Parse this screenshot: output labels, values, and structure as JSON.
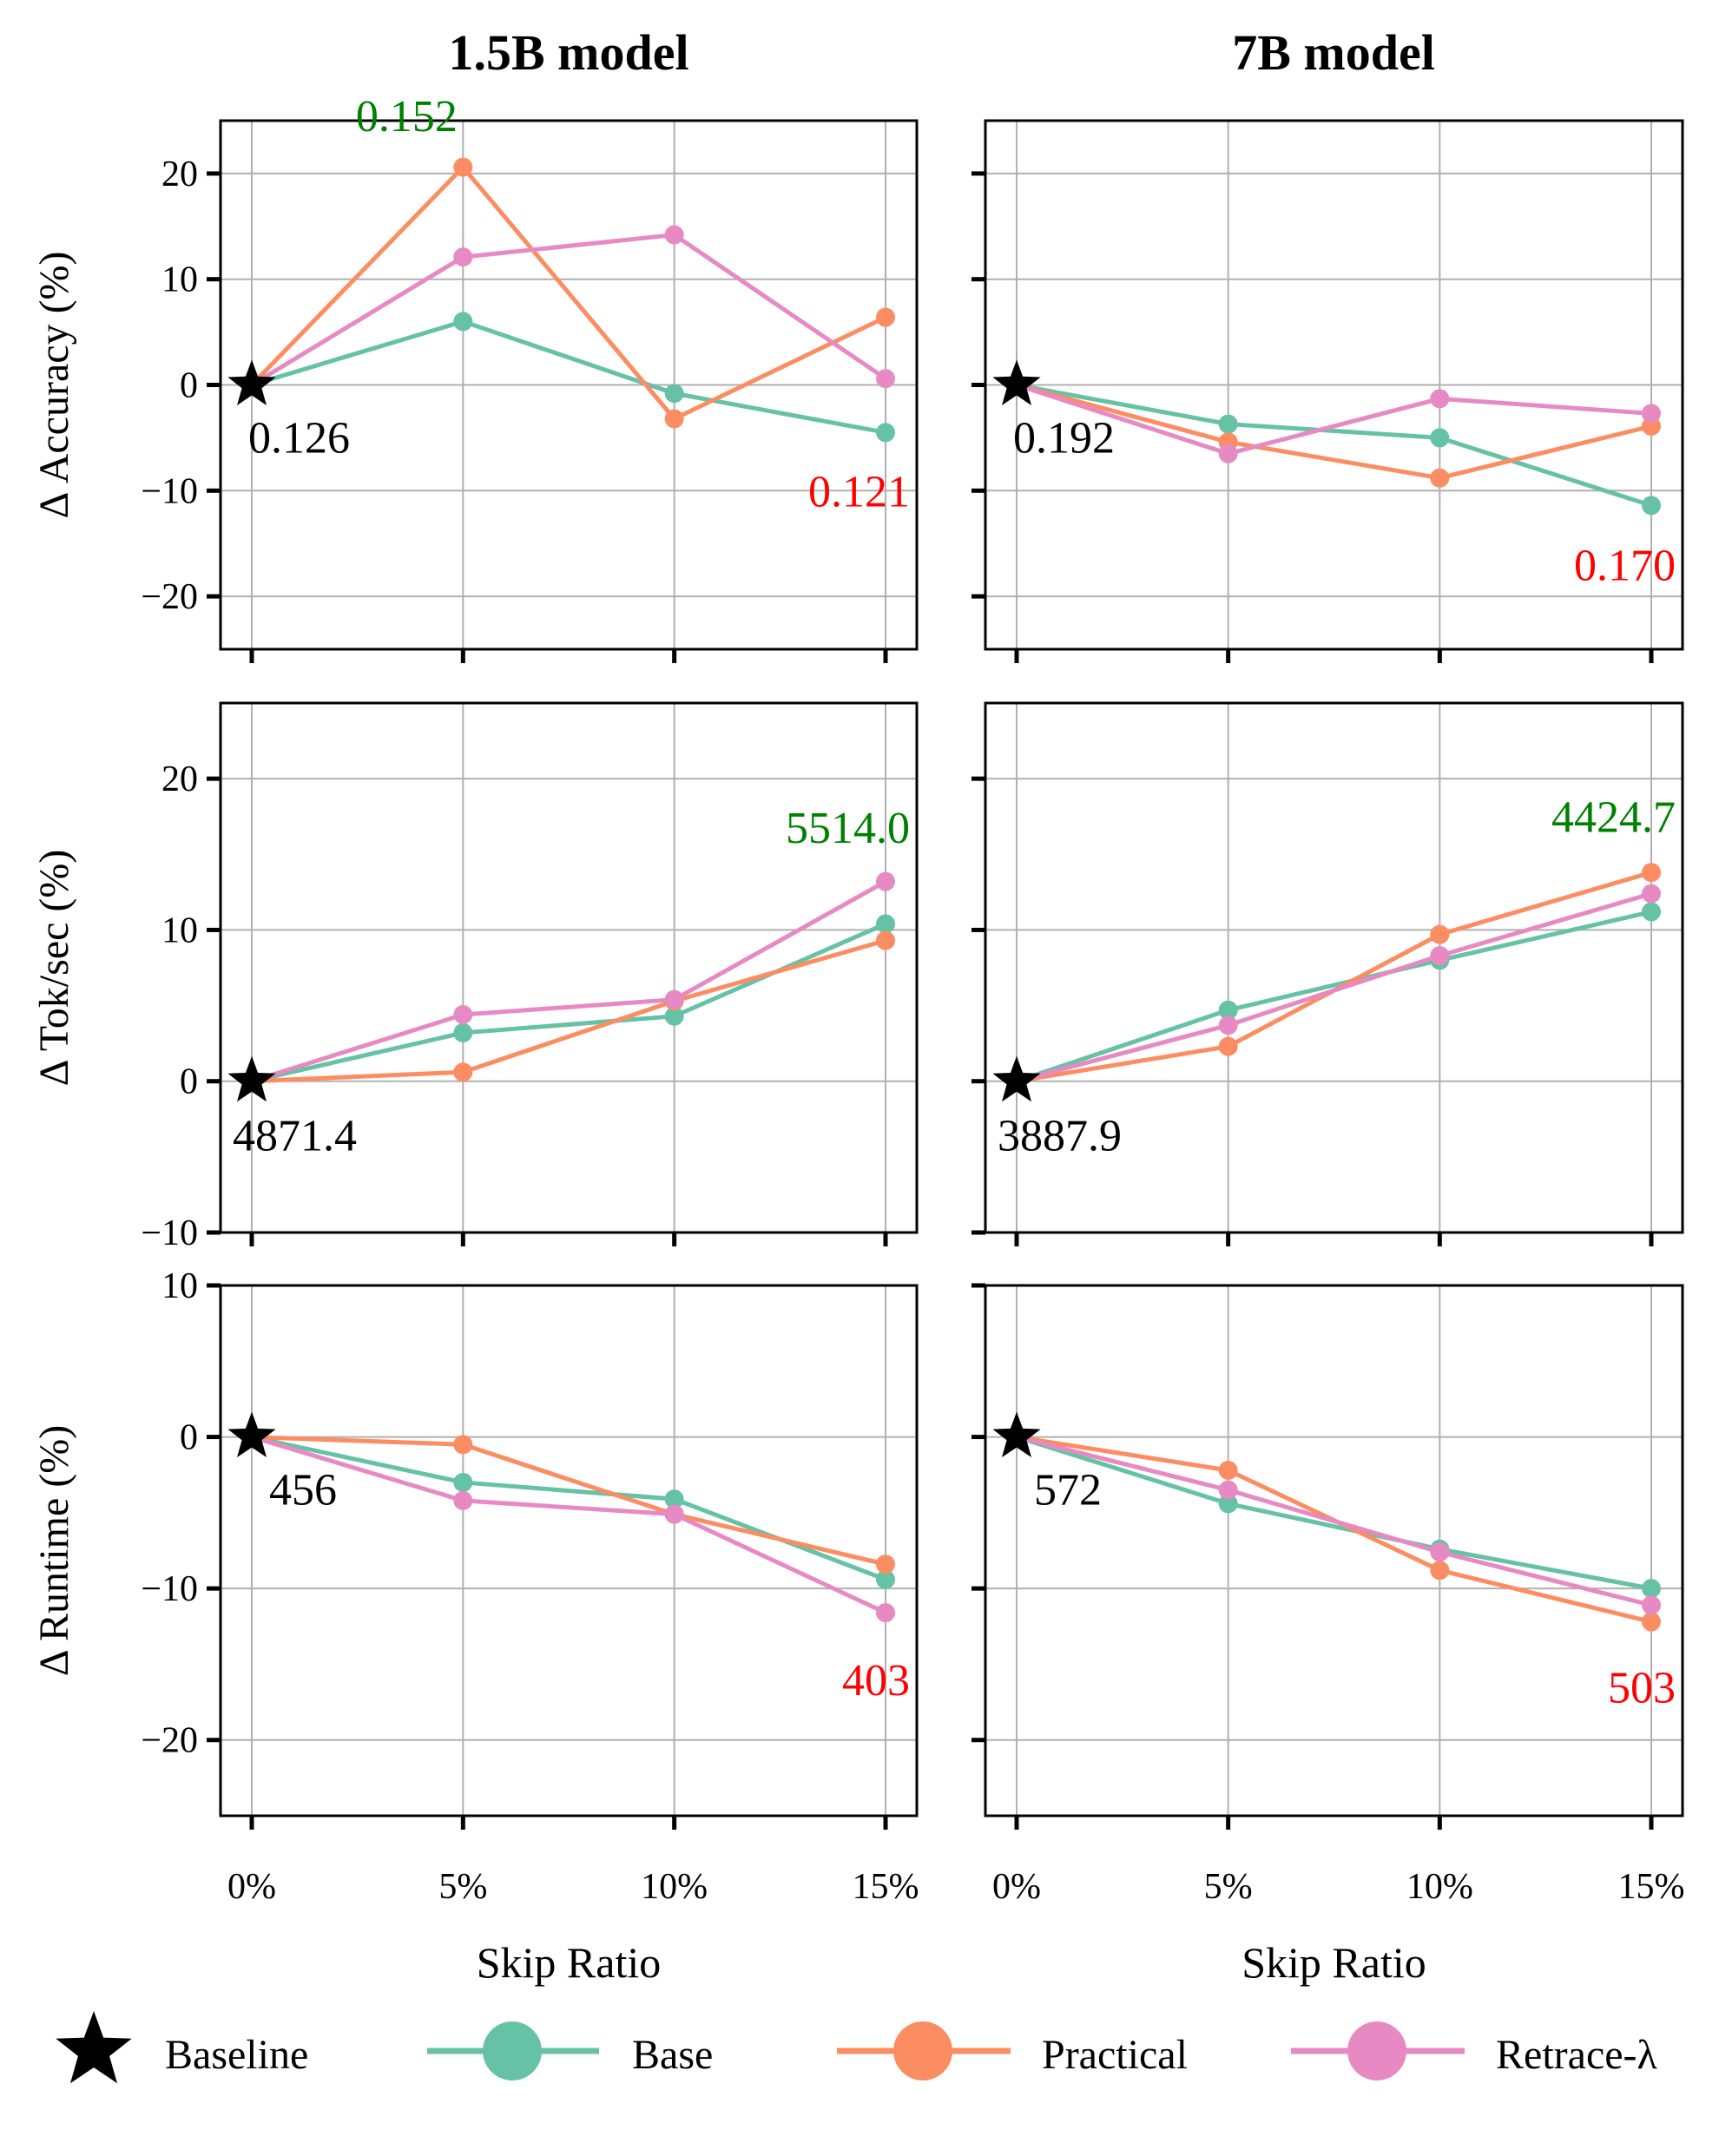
{
  "colors": {
    "base": "#66c2a5",
    "practical": "#fc8d62",
    "retrace": "#e78ac3",
    "green_annot": "#008000",
    "red_annot": "#ff0000",
    "grid": "#b0b0b0"
  },
  "columns": [
    "1.5B model",
    "7B model"
  ],
  "legend": [
    {
      "key": "baseline",
      "label": "Baseline",
      "marker": "star"
    },
    {
      "key": "base",
      "label": "Base",
      "marker": "circle-line"
    },
    {
      "key": "practical",
      "label": "Practical",
      "marker": "circle-line"
    },
    {
      "key": "retrace",
      "label": "Retrace-λ",
      "marker": "circle-line"
    }
  ],
  "chart_data": [
    {
      "type": "line",
      "row": 0,
      "col": 0,
      "title": "1.5B model",
      "ylabel": "Δ Accuracy (%)",
      "xlabel": "",
      "categories": [
        "0%",
        "5%",
        "10%",
        "15%"
      ],
      "ylim": [
        -25,
        25
      ],
      "yticks": [
        -20,
        -10,
        0,
        10,
        20
      ],
      "grid": true,
      "series": [
        {
          "name": "Base",
          "key": "base",
          "values": [
            0,
            6.0,
            -0.8,
            -4.5
          ]
        },
        {
          "name": "Practical",
          "key": "practical",
          "values": [
            0,
            20.6,
            -3.2,
            6.4
          ]
        },
        {
          "name": "Retrace-λ",
          "key": "retrace",
          "values": [
            0,
            12.1,
            14.2,
            0.6
          ]
        }
      ],
      "baseline_value": "0.126",
      "annotations": [
        {
          "text": "0.152",
          "color": "green",
          "x": 1,
          "y": 25.5
        },
        {
          "text": "0.121",
          "color": "red",
          "x": 3,
          "y": -10
        }
      ]
    },
    {
      "type": "line",
      "row": 0,
      "col": 1,
      "title": "7B model",
      "ylabel": "",
      "xlabel": "",
      "categories": [
        "0%",
        "5%",
        "10%",
        "15%"
      ],
      "ylim": [
        -25,
        25
      ],
      "yticks": [
        -20,
        -10,
        0,
        10,
        20
      ],
      "grid": true,
      "series": [
        {
          "name": "Base",
          "key": "base",
          "values": [
            0,
            -3.7,
            -5.0,
            -11.4
          ]
        },
        {
          "name": "Practical",
          "key": "practical",
          "values": [
            0,
            -5.4,
            -8.8,
            -3.9
          ]
        },
        {
          "name": "Retrace-λ",
          "key": "retrace",
          "values": [
            0,
            -6.5,
            -1.3,
            -2.7
          ]
        }
      ],
      "baseline_value": "0.192",
      "annotations": [
        {
          "text": "0.170",
          "color": "red",
          "x": 3,
          "y": -17
        }
      ]
    },
    {
      "type": "line",
      "row": 1,
      "col": 0,
      "title": "",
      "ylabel": "Δ Tok/sec (%)",
      "xlabel": "",
      "categories": [
        "0%",
        "5%",
        "10%",
        "15%"
      ],
      "ylim": [
        -10,
        25
      ],
      "yticks": [
        -10,
        0,
        10,
        20
      ],
      "grid": true,
      "series": [
        {
          "name": "Base",
          "key": "base",
          "values": [
            0,
            3.2,
            4.3,
            10.4
          ]
        },
        {
          "name": "Practical",
          "key": "practical",
          "values": [
            0,
            0.6,
            5.3,
            9.3
          ]
        },
        {
          "name": "Retrace-λ",
          "key": "retrace",
          "values": [
            0,
            4.4,
            5.4,
            13.2
          ]
        }
      ],
      "baseline_value": "4871.4",
      "annotations": [
        {
          "text": "5514.0",
          "color": "green",
          "x": 3,
          "y": 16.8
        }
      ]
    },
    {
      "type": "line",
      "row": 1,
      "col": 1,
      "title": "",
      "ylabel": "",
      "xlabel": "",
      "categories": [
        "0%",
        "5%",
        "10%",
        "15%"
      ],
      "ylim": [
        -10,
        25
      ],
      "yticks": [
        -10,
        0,
        10,
        20
      ],
      "grid": true,
      "series": [
        {
          "name": "Base",
          "key": "base",
          "values": [
            0,
            4.7,
            8.0,
            11.2
          ]
        },
        {
          "name": "Practical",
          "key": "practical",
          "values": [
            0,
            2.3,
            9.7,
            13.8
          ]
        },
        {
          "name": "Retrace-λ",
          "key": "retrace",
          "values": [
            0,
            3.7,
            8.3,
            12.4
          ]
        }
      ],
      "baseline_value": "3887.9",
      "annotations": [
        {
          "text": "4424.7",
          "color": "green",
          "x": 3,
          "y": 17.5
        }
      ]
    },
    {
      "type": "line",
      "row": 2,
      "col": 0,
      "title": "",
      "ylabel": "Δ Runtime (%)",
      "xlabel": "Skip Ratio",
      "categories": [
        "0%",
        "5%",
        "10%",
        "15%"
      ],
      "ylim": [
        -25,
        10
      ],
      "yticks": [
        -20,
        -10,
        0,
        10
      ],
      "grid": true,
      "series": [
        {
          "name": "Base",
          "key": "base",
          "values": [
            0,
            -3.0,
            -4.1,
            -9.4
          ]
        },
        {
          "name": "Practical",
          "key": "practical",
          "values": [
            0,
            -0.5,
            -5.1,
            -8.4
          ]
        },
        {
          "name": "Retrace-λ",
          "key": "retrace",
          "values": [
            0,
            -4.2,
            -5.1,
            -11.6
          ]
        }
      ],
      "baseline_value": "456",
      "annotations": [
        {
          "text": "403",
          "color": "red",
          "x": 3,
          "y": -16
        }
      ]
    },
    {
      "type": "line",
      "row": 2,
      "col": 1,
      "title": "",
      "ylabel": "",
      "xlabel": "Skip Ratio",
      "categories": [
        "0%",
        "5%",
        "10%",
        "15%"
      ],
      "ylim": [
        -25,
        10
      ],
      "yticks": [
        -20,
        -10,
        0,
        10
      ],
      "grid": true,
      "series": [
        {
          "name": "Base",
          "key": "base",
          "values": [
            0,
            -4.4,
            -7.4,
            -10.0
          ]
        },
        {
          "name": "Practical",
          "key": "practical",
          "values": [
            0,
            -2.2,
            -8.8,
            -12.2
          ]
        },
        {
          "name": "Retrace-λ",
          "key": "retrace",
          "values": [
            0,
            -3.5,
            -7.6,
            -11.1
          ]
        }
      ],
      "baseline_value": "572",
      "annotations": [
        {
          "text": "503",
          "color": "red",
          "x": 3,
          "y": -16.5
        }
      ]
    }
  ]
}
